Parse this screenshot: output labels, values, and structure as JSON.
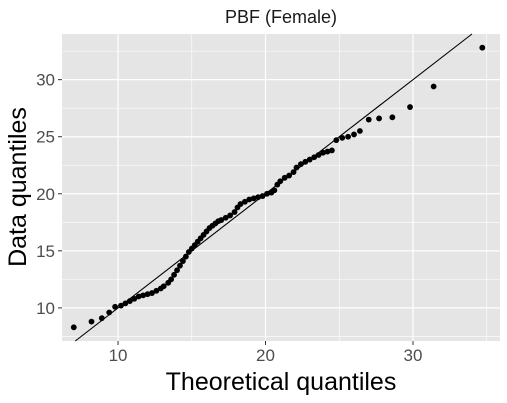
{
  "chart_data": {
    "type": "scatter",
    "title": "PBF (Female)",
    "xlabel": "Theoretical quantiles",
    "ylabel": "Data quantiles",
    "xlim": [
      6.2,
      35.9
    ],
    "ylim": [
      7.1,
      34.0
    ],
    "x_ticks": [
      10,
      20,
      30
    ],
    "y_ticks": [
      10,
      15,
      20,
      25,
      30
    ],
    "grid": true,
    "colors": {
      "panel": "#e5e5e5",
      "grid": "#ffffff",
      "points": "#000000",
      "line": "#000000"
    },
    "reference_line": {
      "x": [
        6.2,
        35.9
      ],
      "y": [
        6.2,
        35.9
      ]
    },
    "points": [
      {
        "x": 7.0,
        "y": 8.3
      },
      {
        "x": 8.2,
        "y": 8.8
      },
      {
        "x": 8.9,
        "y": 9.1
      },
      {
        "x": 9.4,
        "y": 9.6
      },
      {
        "x": 9.8,
        "y": 10.1
      },
      {
        "x": 10.2,
        "y": 10.2
      },
      {
        "x": 10.5,
        "y": 10.4
      },
      {
        "x": 10.8,
        "y": 10.6
      },
      {
        "x": 11.1,
        "y": 10.8
      },
      {
        "x": 11.4,
        "y": 11.0
      },
      {
        "x": 11.7,
        "y": 11.1
      },
      {
        "x": 12.0,
        "y": 11.2
      },
      {
        "x": 12.3,
        "y": 11.3
      },
      {
        "x": 12.6,
        "y": 11.5
      },
      {
        "x": 12.9,
        "y": 11.7
      },
      {
        "x": 13.1,
        "y": 11.9
      },
      {
        "x": 13.4,
        "y": 12.2
      },
      {
        "x": 13.6,
        "y": 12.5
      },
      {
        "x": 13.8,
        "y": 12.9
      },
      {
        "x": 14.0,
        "y": 13.3
      },
      {
        "x": 14.2,
        "y": 13.7
      },
      {
        "x": 14.4,
        "y": 14.1
      },
      {
        "x": 14.6,
        "y": 14.5
      },
      {
        "x": 14.8,
        "y": 14.9
      },
      {
        "x": 15.0,
        "y": 15.2
      },
      {
        "x": 15.2,
        "y": 15.5
      },
      {
        "x": 15.4,
        "y": 15.8
      },
      {
        "x": 15.6,
        "y": 16.1
      },
      {
        "x": 15.8,
        "y": 16.4
      },
      {
        "x": 16.0,
        "y": 16.7
      },
      {
        "x": 16.2,
        "y": 17.0
      },
      {
        "x": 16.4,
        "y": 17.2
      },
      {
        "x": 16.6,
        "y": 17.4
      },
      {
        "x": 16.8,
        "y": 17.6
      },
      {
        "x": 17.0,
        "y": 17.7
      },
      {
        "x": 17.3,
        "y": 17.9
      },
      {
        "x": 17.6,
        "y": 18.1
      },
      {
        "x": 17.9,
        "y": 18.4
      },
      {
        "x": 18.1,
        "y": 18.8
      },
      {
        "x": 18.3,
        "y": 19.1
      },
      {
        "x": 18.6,
        "y": 19.3
      },
      {
        "x": 18.9,
        "y": 19.5
      },
      {
        "x": 19.2,
        "y": 19.6
      },
      {
        "x": 19.5,
        "y": 19.7
      },
      {
        "x": 19.8,
        "y": 19.8
      },
      {
        "x": 20.1,
        "y": 20.0
      },
      {
        "x": 20.4,
        "y": 20.1
      },
      {
        "x": 20.6,
        "y": 20.3
      },
      {
        "x": 20.8,
        "y": 20.8
      },
      {
        "x": 21.0,
        "y": 21.1
      },
      {
        "x": 21.3,
        "y": 21.4
      },
      {
        "x": 21.6,
        "y": 21.6
      },
      {
        "x": 21.9,
        "y": 21.9
      },
      {
        "x": 22.1,
        "y": 22.3
      },
      {
        "x": 22.4,
        "y": 22.6
      },
      {
        "x": 22.7,
        "y": 22.8
      },
      {
        "x": 23.0,
        "y": 23.0
      },
      {
        "x": 23.3,
        "y": 23.2
      },
      {
        "x": 23.6,
        "y": 23.4
      },
      {
        "x": 23.9,
        "y": 23.6
      },
      {
        "x": 24.2,
        "y": 23.7
      },
      {
        "x": 24.5,
        "y": 23.8
      },
      {
        "x": 24.8,
        "y": 24.7
      },
      {
        "x": 25.2,
        "y": 24.9
      },
      {
        "x": 25.6,
        "y": 25.0
      },
      {
        "x": 26.0,
        "y": 25.2
      },
      {
        "x": 26.4,
        "y": 25.5
      },
      {
        "x": 27.0,
        "y": 26.5
      },
      {
        "x": 27.7,
        "y": 26.6
      },
      {
        "x": 28.6,
        "y": 26.7
      },
      {
        "x": 29.8,
        "y": 27.6
      },
      {
        "x": 31.4,
        "y": 29.4
      },
      {
        "x": 34.7,
        "y": 32.8
      }
    ]
  }
}
